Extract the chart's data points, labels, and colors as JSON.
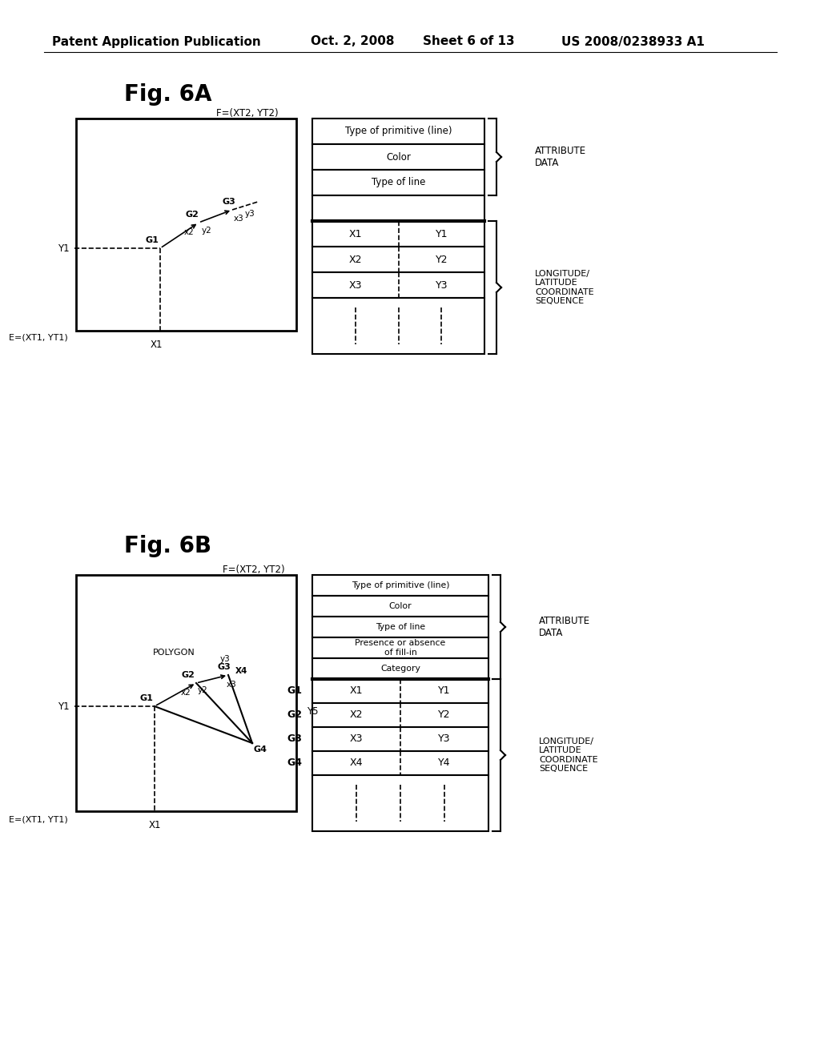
{
  "bg_color": "#ffffff",
  "header_text": "Patent Application Publication",
  "header_date": "Oct. 2, 2008",
  "header_sheet": "Sheet 6 of 13",
  "header_patent": "US 2008/0238933 A1",
  "fig6A": {
    "title": "Fig. 6A",
    "diagram_label_F": "F=(XT2, YT2)",
    "diagram_label_E": "E=(XT1, YT1)",
    "diagram_label_X1": "X1",
    "diagram_label_Y1": "Y1",
    "table_rows_attr": [
      "Type of primitive (line)",
      "Color",
      "Type of line",
      ""
    ],
    "attr_label": "ATTRIBUTE\nDATA",
    "coord_label": "LONGITUDE/\nLATITUDE\nCOORDINATE\nSEQUENCE"
  },
  "fig6B": {
    "title": "Fig. 6B",
    "diagram_label_F": "F=(XT2, YT2)",
    "diagram_label_E": "E=(XT1, YT1)",
    "diagram_label_X1": "X1",
    "diagram_label_Y1": "Y1",
    "diagram_label_Y5": "Y5",
    "polygon_label": "POLYGON",
    "table_rows_attr": [
      "Type of primitive (line)",
      "Color",
      "Type of line",
      "Presence or absence\nof fill-in",
      "Category"
    ],
    "attr_label": "ATTRIBUTE\nDATA",
    "coord_label": "LONGITUDE/\nLATITUDE\nCOORDINATE\nSEQUENCE"
  }
}
